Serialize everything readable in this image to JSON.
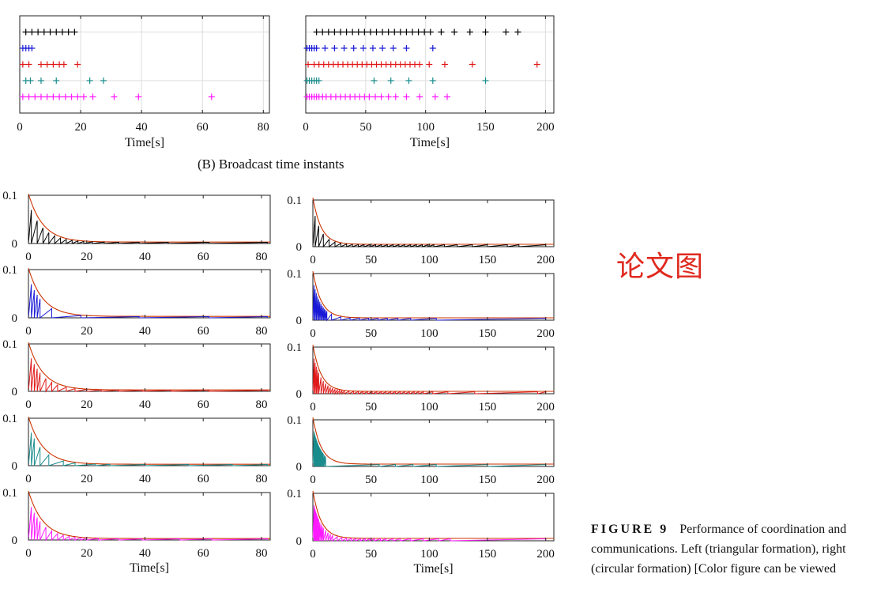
{
  "broadcast": {
    "subcaption": "(B) Broadcast time instants",
    "xlabel": "Time[s]"
  },
  "caption": {
    "label": "FIGURE 9",
    "text": "Performance of coordination and communications. Left (triangular formation), right (circular formation) [Color figure can be viewed"
  },
  "watermark": "论文图",
  "colors": {
    "agents": [
      "#000000",
      "#1a1ad6",
      "#e01a1a",
      "#1a8c8c",
      "#ff1aff"
    ],
    "threshold": "#cc3300",
    "grid": "#dddddd"
  },
  "chart_data": [
    {
      "type": "scatter",
      "panel": "broadcast-left",
      "xlabel": "Time[s]",
      "xlim": [
        0,
        82
      ],
      "xticks": [
        0,
        20,
        40,
        60,
        80
      ],
      "grid": true,
      "series": [
        {
          "values": [
            2,
            4,
            6,
            8,
            10,
            12,
            14,
            16,
            18
          ]
        },
        {
          "values": [
            1,
            2,
            3,
            4
          ]
        },
        {
          "values": [
            1,
            3,
            7,
            9,
            11,
            13,
            14.5,
            19
          ]
        },
        {
          "values": [
            2,
            3.5,
            7,
            12,
            23,
            27.5
          ]
        },
        {
          "values": [
            1,
            3,
            5,
            7,
            9,
            11,
            13,
            15,
            17,
            19,
            21,
            24,
            31,
            39,
            63
          ]
        }
      ]
    },
    {
      "type": "scatter",
      "panel": "broadcast-right",
      "xlabel": "Time[s]",
      "xlim": [
        0,
        207
      ],
      "xticks": [
        0,
        50,
        100,
        150,
        200
      ],
      "grid": true,
      "series": [
        {
          "values": [
            9,
            14,
            19,
            24,
            29,
            34,
            39,
            44,
            49,
            54,
            59,
            64,
            69,
            74,
            79,
            84,
            89,
            94,
            99,
            104,
            113,
            124,
            137,
            150,
            167,
            177
          ]
        },
        {
          "values": [
            1,
            3,
            5,
            7,
            9,
            16,
            24,
            32,
            40,
            48,
            56,
            64,
            73,
            84,
            106
          ]
        },
        {
          "values": [
            2,
            7,
            11,
            15,
            19,
            23,
            27,
            31,
            35,
            39,
            43,
            47,
            51,
            55,
            59,
            63,
            67,
            71,
            75,
            79,
            83,
            87,
            91,
            95,
            103,
            116,
            139,
            193
          ]
        },
        {
          "values": [
            1,
            3,
            5,
            7,
            9,
            11,
            57,
            71,
            86,
            106,
            150
          ]
        },
        {
          "values": [
            1,
            3,
            5,
            7,
            9,
            11,
            14,
            17,
            21,
            25,
            29,
            33,
            37,
            41,
            45,
            49,
            53,
            58,
            63,
            69,
            75,
            84,
            95,
            108,
            118
          ]
        }
      ]
    },
    {
      "type": "line",
      "panel": "errors-left",
      "xlabel": "Time[s]",
      "xlim": [
        0,
        83
      ],
      "xticks": [
        0,
        20,
        40,
        60,
        80
      ],
      "ylim": [
        0,
        0.1
      ],
      "yticks": [
        0,
        0.1
      ],
      "threshold": {
        "amplitude": 0.1,
        "decay_rate": 0.2,
        "floor": 0.003
      },
      "series": [
        {
          "color_index": 0,
          "events": [
            1,
            3,
            5,
            7,
            9,
            11,
            13,
            15,
            17,
            19,
            22,
            26,
            31,
            38,
            48,
            62,
            82
          ]
        },
        {
          "color_index": 1,
          "events": [
            1,
            2,
            3,
            4,
            8,
            18,
            38,
            62,
            82
          ]
        },
        {
          "color_index": 2,
          "events": [
            1,
            2,
            3,
            4,
            6,
            8,
            10,
            13,
            16,
            20,
            25,
            31,
            39,
            49,
            62,
            82
          ]
        },
        {
          "color_index": 3,
          "events": [
            1,
            2,
            4,
            7,
            12,
            16,
            23,
            28,
            40,
            55,
            70,
            82
          ]
        },
        {
          "color_index": 4,
          "events": [
            1,
            2,
            3,
            4,
            6,
            8,
            10,
            12,
            14,
            16,
            18,
            20,
            24,
            31,
            39,
            52,
            63,
            82
          ]
        }
      ]
    },
    {
      "type": "line",
      "panel": "errors-right",
      "xlabel": "Time[s]",
      "xlim": [
        0,
        207
      ],
      "xticks": [
        0,
        50,
        100,
        150,
        200
      ],
      "ylim": [
        0,
        0.1
      ],
      "yticks": [
        0,
        0.1
      ],
      "threshold": {
        "amplitude": 0.1,
        "decay_rate": 0.14,
        "floor": 0.005
      },
      "series": [
        {
          "color_index": 0,
          "events": [
            2,
            5,
            9,
            14,
            19,
            24,
            29,
            34,
            39,
            44,
            49,
            54,
            59,
            64,
            69,
            74,
            79,
            84,
            89,
            94,
            99,
            104,
            113,
            124,
            137,
            150,
            167,
            177,
            200
          ]
        },
        {
          "color_index": 1,
          "events": [
            1,
            2,
            3,
            4,
            5,
            6,
            7,
            8,
            9,
            10,
            11,
            12,
            16,
            24,
            32,
            40,
            48,
            56,
            64,
            73,
            84,
            106,
            200
          ]
        },
        {
          "color_index": 2,
          "events": [
            1,
            2,
            3,
            4,
            5,
            7,
            9,
            11,
            13,
            15,
            17,
            19,
            21,
            23,
            25,
            27,
            31,
            35,
            39,
            43,
            47,
            51,
            55,
            59,
            63,
            67,
            71,
            75,
            79,
            83,
            87,
            91,
            95,
            103,
            116,
            139,
            193,
            200
          ]
        },
        {
          "color_index": 3,
          "events": [
            1,
            1.5,
            2,
            2.5,
            3,
            3.5,
            4,
            4.5,
            5,
            5.5,
            6,
            6.5,
            7,
            7.5,
            8,
            8.5,
            9,
            10,
            11,
            57,
            71,
            86,
            106,
            150,
            200
          ]
        },
        {
          "color_index": 4,
          "events": [
            1,
            1.5,
            2,
            2.5,
            3,
            3.5,
            4,
            4.5,
            5,
            6,
            7,
            8,
            9,
            11,
            13,
            15,
            17,
            21,
            25,
            29,
            33,
            37,
            41,
            45,
            49,
            53,
            58,
            63,
            69,
            75,
            84,
            95,
            108,
            118,
            200
          ]
        }
      ]
    }
  ]
}
